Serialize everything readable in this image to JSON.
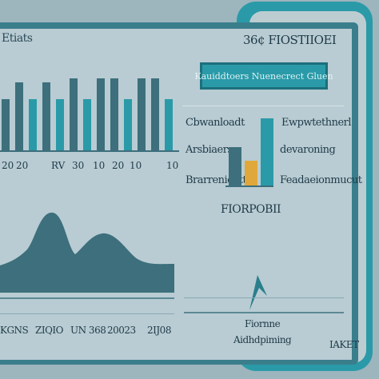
{
  "left_panel": {
    "title": "Etiats",
    "bar_labels": [
      "20",
      "20",
      "RV",
      "30",
      "10",
      "20",
      "10",
      "10"
    ],
    "bars": [
      {
        "value": 0.58,
        "color": "#3d6f7c"
      },
      {
        "value": 0.77,
        "color": "#3d6f7c"
      },
      {
        "value": 0.58,
        "color": "#2a9aa8"
      },
      {
        "value": 0.77,
        "color": "#3d6f7c"
      },
      {
        "value": 0.58,
        "color": "#2a9aa8"
      },
      {
        "value": 0.82,
        "color": "#3d6f7c"
      },
      {
        "value": 0.58,
        "color": "#2a9aa8"
      },
      {
        "value": 0.82,
        "color": "#3d6f7c"
      },
      {
        "value": 0.82,
        "color": "#3d6f7c"
      },
      {
        "value": 0.58,
        "color": "#2a9aa8"
      },
      {
        "value": 0.82,
        "color": "#3d6f7c"
      },
      {
        "value": 0.82,
        "color": "#3d6f7c"
      },
      {
        "value": 0.58,
        "color": "#2a9aa8"
      }
    ],
    "bottom_labels": [
      "KGNS",
      "ZIQIO",
      "UN 368",
      "20023",
      "2IJ08"
    ]
  },
  "right_panel": {
    "title": "36¢ FIOSTIIOEI",
    "badge": "Kauiddtoers Nuenecrect Gluen",
    "left_labels": [
      "Cbwanloadt",
      "Arsbiaers",
      "Brarrenicptt"
    ],
    "right_labels": [
      "Ewpwtethnerl",
      "devaroning",
      "Feadaeionmucut"
    ],
    "mini_bars": [
      {
        "value": 0.55,
        "color": "#3d6f7c"
      },
      {
        "value": 0.35,
        "color": "#e0a83a"
      },
      {
        "value": 0.95,
        "color": "#2a9aa8"
      }
    ],
    "subtitle": "FIORPOBII",
    "footer_label_1": "Fiornne",
    "footer_label_2": "Aidhdpiming",
    "corner_label": "IAKET"
  },
  "colors": {
    "background": "#9db5bd",
    "screen": "#b9ccd3",
    "accent": "#2a9aa8",
    "dark": "#3d6f7c",
    "highlight": "#e0a83a"
  }
}
